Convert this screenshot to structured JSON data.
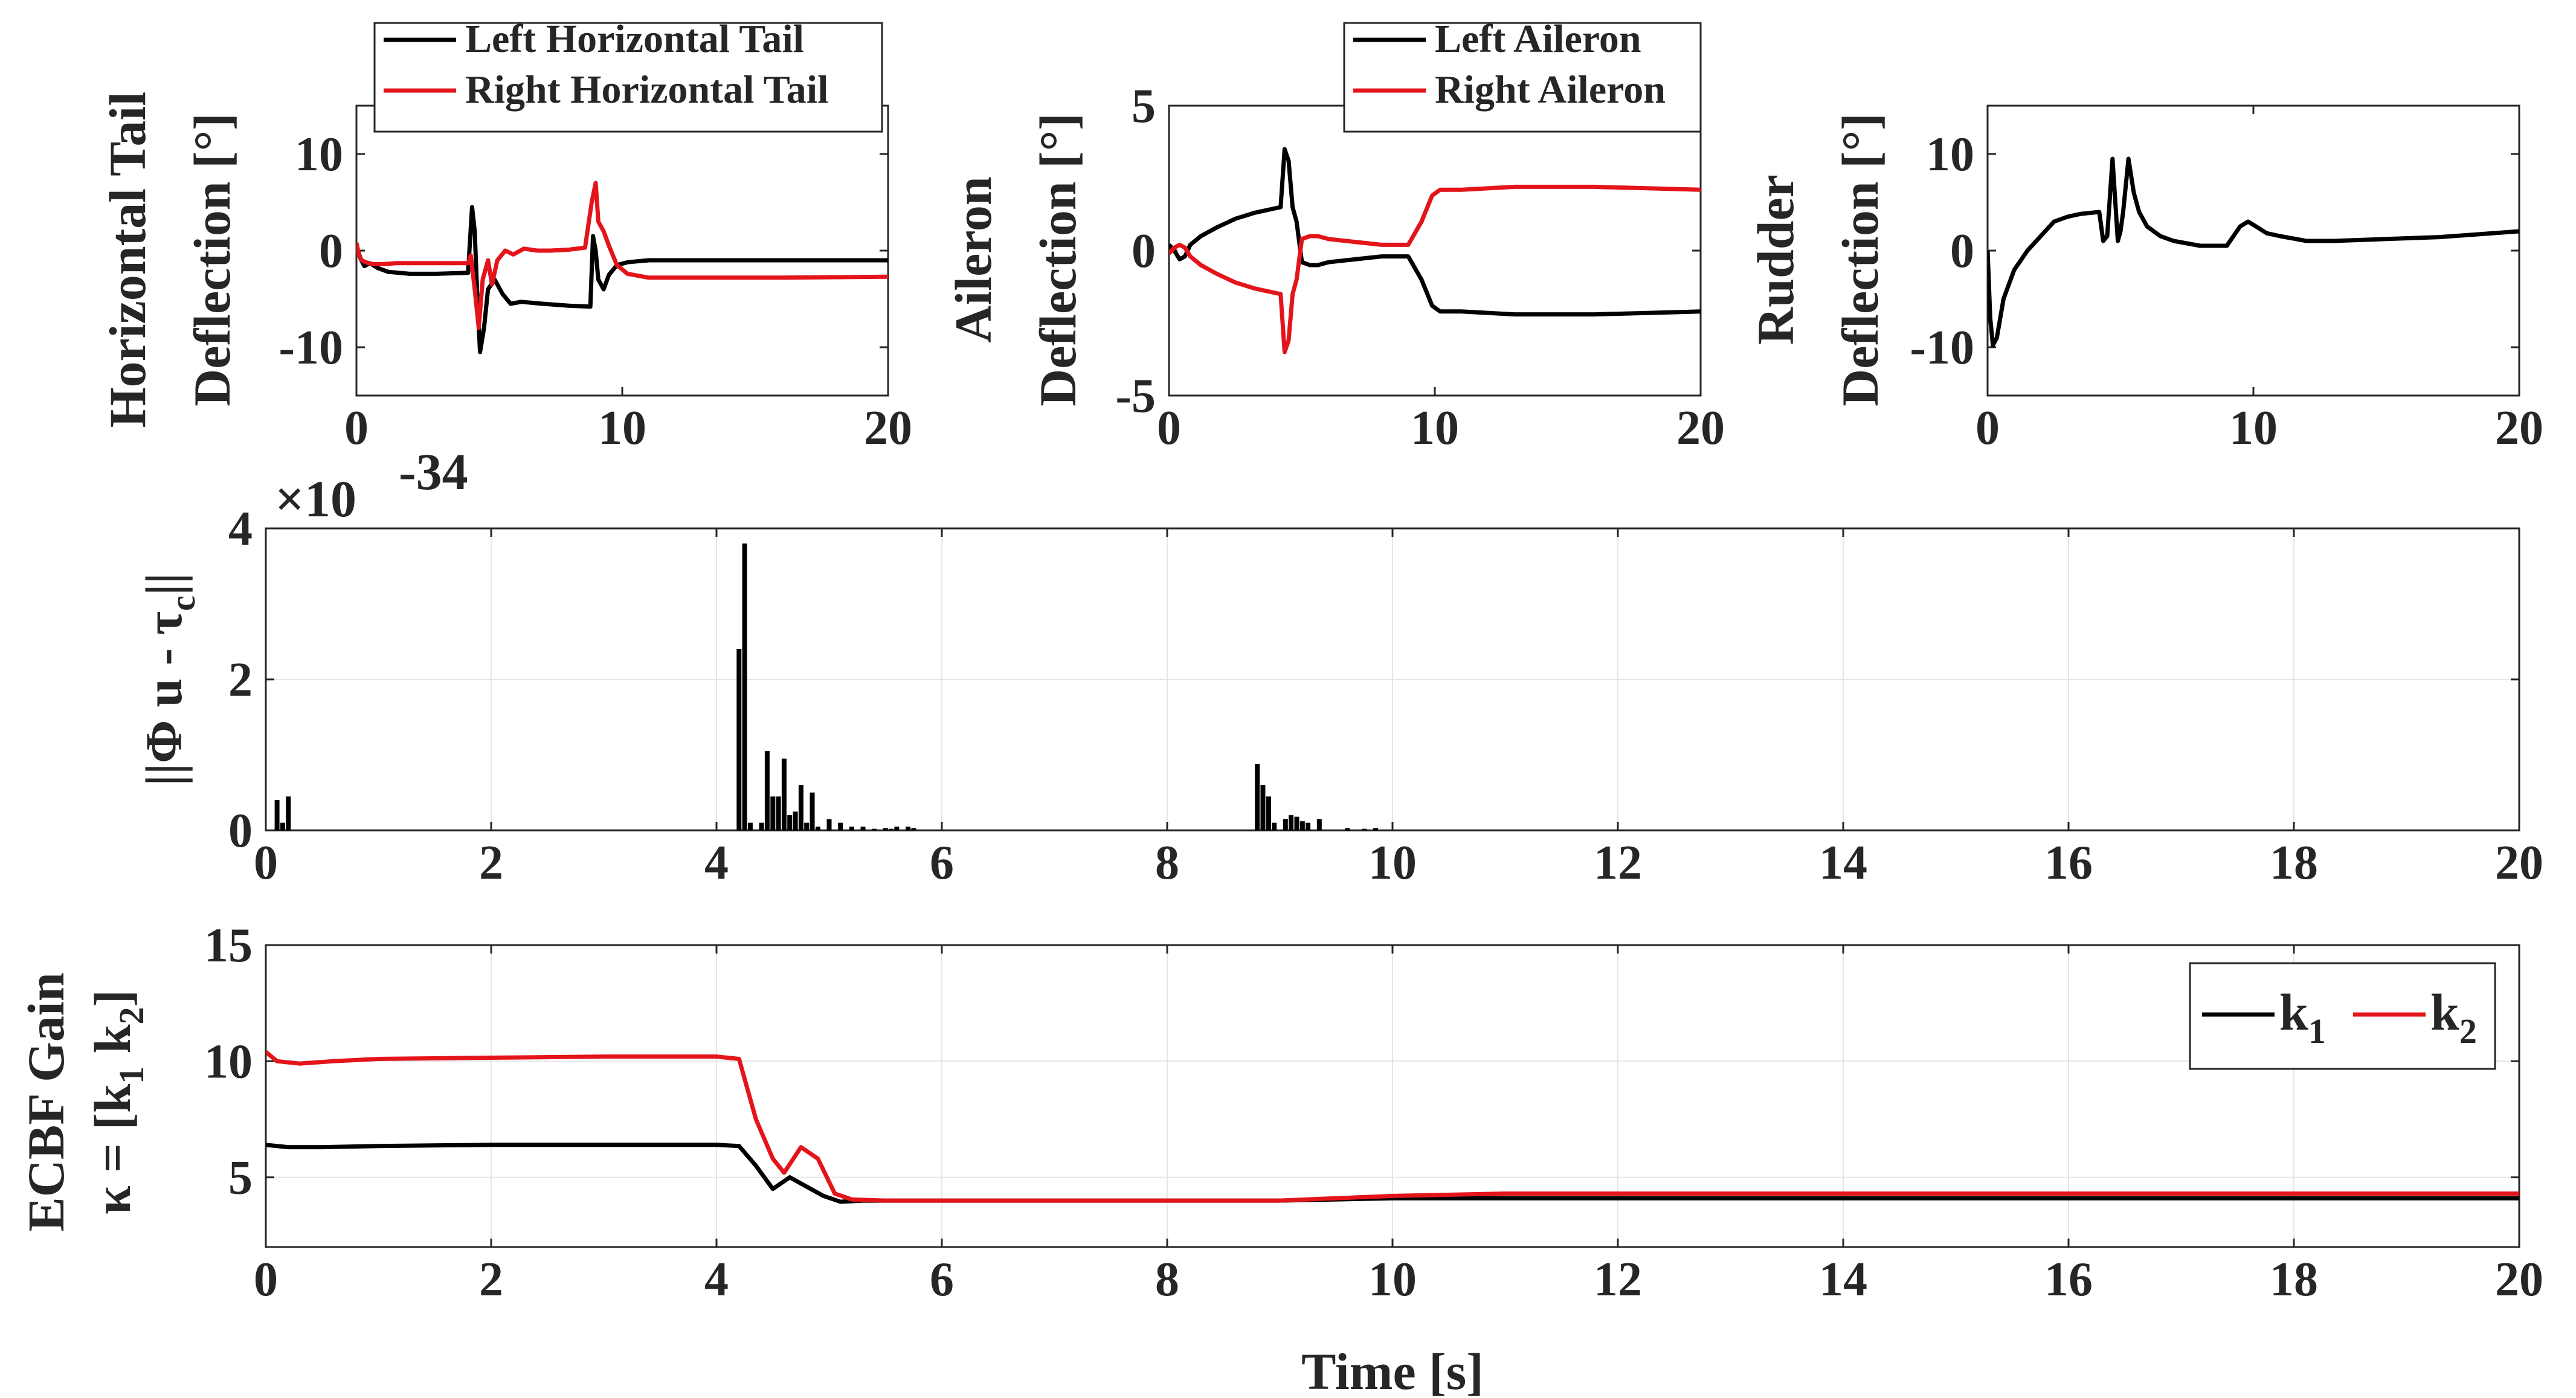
{
  "colors": {
    "black_series": "#000000",
    "red_series": "#e4141b",
    "axis": "#262626",
    "grid": "#e6e6e6"
  },
  "chart_data": [
    {
      "id": "htail",
      "type": "line",
      "ylabel_lines": [
        "Horizontal Tail",
        "Deflection [°]"
      ],
      "xlim": [
        0,
        20
      ],
      "ylim": [
        -15,
        15
      ],
      "xticks": [
        "0",
        "10",
        "20"
      ],
      "xtick_values": [
        0,
        10,
        20
      ],
      "yticks": [
        "-10",
        "0",
        "10"
      ],
      "ytick_values": [
        -10,
        0,
        10
      ],
      "legend": {
        "position": "top-right-outside",
        "entries": [
          "Left Horizontal Tail",
          "Right Horizontal Tail"
        ]
      },
      "series": [
        {
          "name": "Left Horizontal Tail",
          "color": "#000000",
          "x": [
            0,
            0.15,
            0.3,
            0.5,
            0.8,
            1.2,
            2,
            3,
            4.2,
            4.35,
            4.45,
            4.55,
            4.65,
            4.8,
            4.95,
            5.2,
            5.5,
            5.8,
            6.2,
            7,
            8,
            8.8,
            8.9,
            9.0,
            9.1,
            9.3,
            9.5,
            9.8,
            10.2,
            11,
            14,
            17,
            20
          ],
          "y": [
            0.5,
            -0.8,
            -1.6,
            -1.3,
            -1.8,
            -2.2,
            -2.4,
            -2.4,
            -2.3,
            4.5,
            2,
            -5,
            -10.5,
            -8,
            -4,
            -3,
            -4.5,
            -5.5,
            -5.3,
            -5.5,
            -5.7,
            -5.8,
            1.5,
            0,
            -3,
            -4,
            -2.5,
            -1.5,
            -1.2,
            -1,
            -1,
            -1,
            -1
          ]
        },
        {
          "name": "Right Horizontal Tail",
          "color": "#e4141b",
          "x": [
            0,
            0.1,
            0.2,
            0.35,
            0.6,
            1,
            1.5,
            2.5,
            4.2,
            4.3,
            4.45,
            4.6,
            4.75,
            4.95,
            5.1,
            5.3,
            5.6,
            5.9,
            6.3,
            6.8,
            7.3,
            8,
            8.6,
            8.85,
            9.0,
            9.1,
            9.3,
            9.5,
            9.8,
            10.2,
            11,
            13,
            16,
            20
          ],
          "y": [
            0.8,
            -0.5,
            -1,
            -1.2,
            -1.4,
            -1.4,
            -1.3,
            -1.3,
            -1.3,
            -0.5,
            -4,
            -8,
            -3,
            -1,
            -3.5,
            -1,
            0,
            -0.4,
            0.2,
            0,
            0,
            0.1,
            0.3,
            5,
            7,
            3,
            2,
            0.5,
            -1.5,
            -2.4,
            -2.8,
            -2.8,
            -2.8,
            -2.7
          ]
        }
      ]
    },
    {
      "id": "aileron",
      "type": "line",
      "ylabel_lines": [
        "Aileron",
        "Deflection [°]"
      ],
      "xlim": [
        0,
        20
      ],
      "ylim": [
        -5,
        5
      ],
      "xticks": [
        "0",
        "10",
        "20"
      ],
      "xtick_values": [
        0,
        10,
        20
      ],
      "yticks": [
        "-5",
        "0",
        "5"
      ],
      "ytick_values": [
        -5,
        0,
        5
      ],
      "legend": {
        "position": "top-right-outside",
        "entries": [
          "Left Aileron",
          "Right Aileron"
        ]
      },
      "series": [
        {
          "name": "Left Aileron",
          "color": "#000000",
          "x": [
            0,
            0.2,
            0.4,
            0.6,
            0.8,
            1.2,
            1.8,
            2.5,
            3.2,
            4.2,
            4.35,
            4.5,
            4.65,
            4.8,
            5.0,
            5.3,
            5.6,
            6,
            7,
            8,
            9,
            9.5,
            9.9,
            10.2,
            11,
            13,
            16,
            20
          ],
          "y": [
            0.2,
            0,
            -0.3,
            -0.2,
            0.2,
            0.5,
            0.8,
            1.1,
            1.3,
            1.5,
            3.5,
            3.1,
            1.5,
            1,
            -0.4,
            -0.5,
            -0.5,
            -0.4,
            -0.3,
            -0.2,
            -0.2,
            -1,
            -1.9,
            -2.1,
            -2.1,
            -2.2,
            -2.2,
            -2.1
          ]
        },
        {
          "name": "Right Aileron",
          "color": "#e4141b",
          "x": [
            0,
            0.2,
            0.4,
            0.6,
            0.8,
            1.2,
            1.8,
            2.5,
            3.2,
            4.2,
            4.35,
            4.5,
            4.65,
            4.8,
            5.0,
            5.3,
            5.6,
            6,
            7,
            8,
            9,
            9.5,
            9.9,
            10.2,
            11,
            13,
            16,
            20
          ],
          "y": [
            -0.1,
            0.1,
            0.2,
            0.1,
            -0.2,
            -0.5,
            -0.8,
            -1.1,
            -1.3,
            -1.5,
            -3.5,
            -3.1,
            -1.5,
            -1,
            0.4,
            0.5,
            0.5,
            0.4,
            0.3,
            0.2,
            0.2,
            1,
            1.9,
            2.1,
            2.1,
            2.2,
            2.2,
            2.1
          ]
        }
      ]
    },
    {
      "id": "rudder",
      "type": "line",
      "ylabel_lines": [
        "Rudder",
        "Deflection [°]"
      ],
      "xlim": [
        0,
        20
      ],
      "ylim": [
        -15,
        15
      ],
      "xticks": [
        "0",
        "10",
        "20"
      ],
      "xtick_values": [
        0,
        10,
        20
      ],
      "yticks": [
        "-10",
        "0",
        "10"
      ],
      "ytick_values": [
        -10,
        0,
        10
      ],
      "legend": null,
      "series": [
        {
          "name": "Rudder",
          "color": "#000000",
          "x": [
            0,
            0.1,
            0.2,
            0.35,
            0.6,
            1,
            1.5,
            2,
            2.5,
            3,
            3.5,
            4.2,
            4.35,
            4.5,
            4.7,
            4.9,
            5.0,
            5.1,
            5.3,
            5.5,
            5.7,
            6,
            6.5,
            7,
            8,
            9,
            9.5,
            9.8,
            10.1,
            10.5,
            11,
            12,
            13,
            15,
            17,
            20
          ],
          "y": [
            0,
            -7,
            -9.8,
            -9,
            -5,
            -2,
            0,
            1.5,
            3,
            3.5,
            3.8,
            4,
            1,
            1.5,
            9.5,
            1,
            2,
            4,
            9.5,
            6,
            4,
            2.5,
            1.5,
            1,
            0.5,
            0.5,
            2.5,
            3,
            2.5,
            1.8,
            1.5,
            1,
            1,
            1.2,
            1.4,
            2
          ]
        }
      ]
    },
    {
      "id": "residual",
      "type": "bar",
      "ylabel": "||Φ u - τ",
      "ylabel_sub": "c",
      "ylabel_end": "||",
      "exponent_label": "×10",
      "exponent": "-34",
      "xlim": [
        0,
        20
      ],
      "ylim": [
        0,
        4
      ],
      "xticks": [
        "0",
        "2",
        "4",
        "6",
        "8",
        "10",
        "12",
        "14",
        "16",
        "18",
        "20"
      ],
      "xtick_values": [
        0,
        2,
        4,
        6,
        8,
        10,
        12,
        14,
        16,
        18,
        20
      ],
      "yticks": [
        "0",
        "2",
        "4"
      ],
      "ytick_values": [
        0,
        2,
        4
      ],
      "grid": true,
      "x": [
        0.1,
        0.15,
        0.2,
        4.2,
        4.25,
        4.3,
        4.4,
        4.45,
        4.5,
        4.55,
        4.6,
        4.65,
        4.7,
        4.75,
        4.8,
        4.85,
        4.9,
        5.0,
        5.1,
        5.2,
        5.3,
        5.4,
        5.5,
        5.55,
        5.6,
        5.7,
        5.75,
        8.8,
        8.85,
        8.9,
        8.95,
        9.05,
        9.1,
        9.15,
        9.2,
        9.25,
        9.35,
        9.6,
        9.75,
        9.85
      ],
      "values": [
        0.4,
        0.1,
        0.45,
        2.4,
        3.8,
        0.1,
        0.1,
        1.05,
        0.45,
        0.45,
        0.95,
        0.2,
        0.25,
        0.6,
        0.1,
        0.5,
        0.05,
        0.15,
        0.1,
        0.05,
        0.05,
        0.02,
        0.03,
        0.02,
        0.05,
        0.05,
        0.03,
        0.88,
        0.6,
        0.45,
        0.1,
        0.15,
        0.2,
        0.18,
        0.12,
        0.1,
        0.15,
        0.03,
        0.02,
        0.03
      ]
    },
    {
      "id": "gain",
      "type": "line",
      "ylabel_lines": [
        "ECBF Gain",
        "κ = [k  k ]"
      ],
      "ylabel_subs": [
        "1",
        "2"
      ],
      "xlabel": "Time [s]",
      "xlim": [
        0,
        20
      ],
      "ylim": [
        2,
        15
      ],
      "xticks": [
        "0",
        "2",
        "4",
        "6",
        "8",
        "10",
        "12",
        "14",
        "16",
        "18",
        "20"
      ],
      "xtick_values": [
        0,
        2,
        4,
        6,
        8,
        10,
        12,
        14,
        16,
        18,
        20
      ],
      "yticks": [
        "5",
        "10",
        "15"
      ],
      "ytick_values": [
        5,
        10,
        15
      ],
      "grid": true,
      "legend": {
        "position": "top-right",
        "entries": [
          "k",
          "k"
        ],
        "entry_subs": [
          "1",
          "2"
        ]
      },
      "series": [
        {
          "name": "k1",
          "color": "#000000",
          "x": [
            0,
            0.2,
            0.5,
            1,
            2,
            3,
            4,
            4.2,
            4.35,
            4.5,
            4.65,
            4.8,
            4.95,
            5.1,
            5.3,
            6,
            8,
            9,
            10,
            11,
            14,
            20
          ],
          "y": [
            6.4,
            6.3,
            6.3,
            6.35,
            6.4,
            6.4,
            6.4,
            6.35,
            5.5,
            4.5,
            5,
            4.6,
            4.2,
            3.95,
            4,
            4,
            4,
            4,
            4.1,
            4.1,
            4.1,
            4.1
          ]
        },
        {
          "name": "k2",
          "color": "#e4141b",
          "x": [
            0,
            0.1,
            0.3,
            0.6,
            1,
            2,
            3,
            4,
            4.2,
            4.35,
            4.5,
            4.6,
            4.75,
            4.9,
            5.05,
            5.2,
            5.5,
            6,
            8,
            9,
            10,
            11,
            14,
            20
          ],
          "y": [
            10.4,
            10,
            9.9,
            10,
            10.1,
            10.15,
            10.2,
            10.2,
            10.1,
            7.5,
            5.8,
            5.2,
            6.3,
            5.8,
            4.3,
            4.05,
            4,
            4,
            4,
            4,
            4.2,
            4.3,
            4.3,
            4.3
          ]
        }
      ]
    }
  ]
}
